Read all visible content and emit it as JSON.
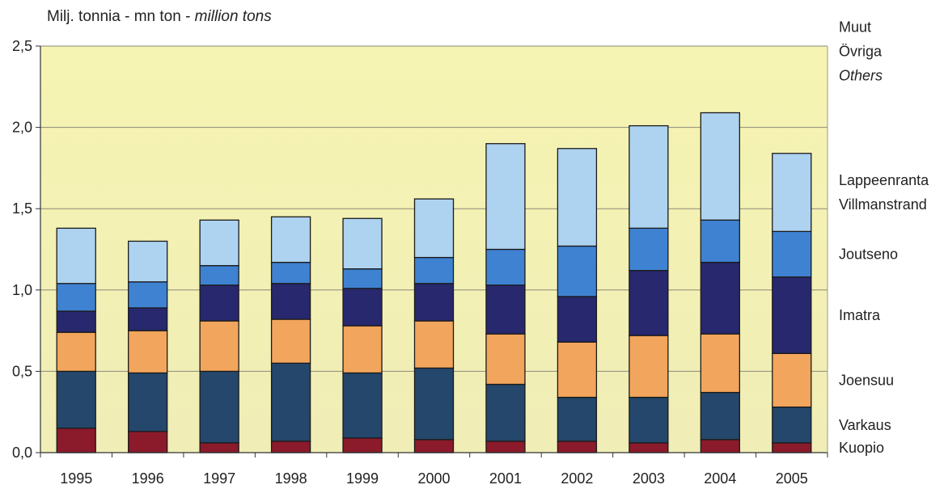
{
  "chart_data": {
    "type": "bar",
    "stacked": true,
    "unit_label": {
      "part1": "Milj. tonnia - mn ton - ",
      "part2": "million tons"
    },
    "categories": [
      "1995",
      "1996",
      "1997",
      "1998",
      "1999",
      "2000",
      "2001",
      "2002",
      "2003",
      "2004",
      "2005"
    ],
    "ylim": [
      0,
      2.5
    ],
    "yticks": [
      "0,0",
      "0,5",
      "1,0",
      "1,5",
      "2,0",
      "2,5"
    ],
    "grid": true,
    "legend_position": "right",
    "series": [
      {
        "name": "Kuopio",
        "labels": [
          "Kuopio"
        ],
        "color": "#8b1a2b",
        "values": [
          0.15,
          0.13,
          0.06,
          0.07,
          0.09,
          0.08,
          0.07,
          0.07,
          0.06,
          0.08,
          0.06
        ]
      },
      {
        "name": "Varkaus",
        "labels": [
          "Varkaus"
        ],
        "color": "#24476b",
        "values": [
          0.35,
          0.36,
          0.44,
          0.48,
          0.4,
          0.44,
          0.35,
          0.27,
          0.28,
          0.29,
          0.22
        ]
      },
      {
        "name": "Joensuu",
        "labels": [
          "Joensuu"
        ],
        "color": "#f2a55c",
        "values": [
          0.24,
          0.26,
          0.31,
          0.27,
          0.29,
          0.29,
          0.31,
          0.34,
          0.38,
          0.36,
          0.33
        ]
      },
      {
        "name": "Imatra",
        "labels": [
          "Imatra"
        ],
        "color": "#28286e",
        "values": [
          0.13,
          0.14,
          0.22,
          0.22,
          0.23,
          0.23,
          0.3,
          0.28,
          0.4,
          0.44,
          0.47
        ]
      },
      {
        "name": "Joutseno",
        "labels": [
          "Joutseno"
        ],
        "color": "#3f82d2",
        "values": [
          0.17,
          0.16,
          0.12,
          0.13,
          0.12,
          0.16,
          0.22,
          0.31,
          0.26,
          0.26,
          0.28
        ]
      },
      {
        "name": "Lappeenranta Villmanstrand",
        "labels": [
          "Lappeenranta",
          "Villmanstrand"
        ],
        "color": "#aed3f0",
        "values": [
          0.34,
          0.25,
          0.28,
          0.28,
          0.31,
          0.36,
          0.65,
          0.6,
          0.63,
          0.66,
          0.48
        ]
      },
      {
        "name": "Muut Övriga Others",
        "labels": [
          "Muut",
          "Övriga",
          "Others"
        ],
        "italic_last": true,
        "color": "#f2f0b0",
        "values": [
          0,
          0,
          0,
          0,
          0,
          0,
          0,
          0,
          0,
          0,
          0
        ]
      }
    ]
  }
}
